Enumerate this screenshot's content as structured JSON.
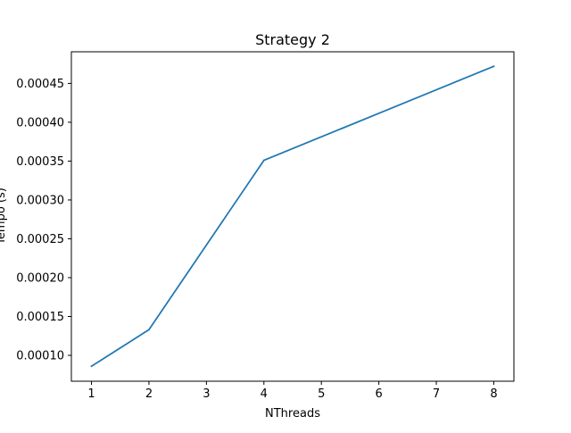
{
  "chart_data": {
    "type": "line",
    "title": "Strategy 2",
    "xlabel": "NThreads",
    "ylabel": "Tempo (s)",
    "x": [
      1,
      2,
      4,
      8
    ],
    "series": [
      {
        "values": [
          8.6e-05,
          0.000133,
          0.000351,
          0.000472
        ],
        "color": "#1f77b4"
      }
    ],
    "xlim": [
      0.65,
      8.35
    ],
    "ylim": [
      6.67e-05,
      0.0004907
    ],
    "xticks": [
      1,
      2,
      3,
      4,
      5,
      6,
      7,
      8
    ],
    "yticks": [
      "0.00010",
      "0.00015",
      "0.00020",
      "0.00025",
      "0.00030",
      "0.00035",
      "0.00040",
      "0.00045"
    ],
    "grid": false,
    "legend": "none"
  }
}
